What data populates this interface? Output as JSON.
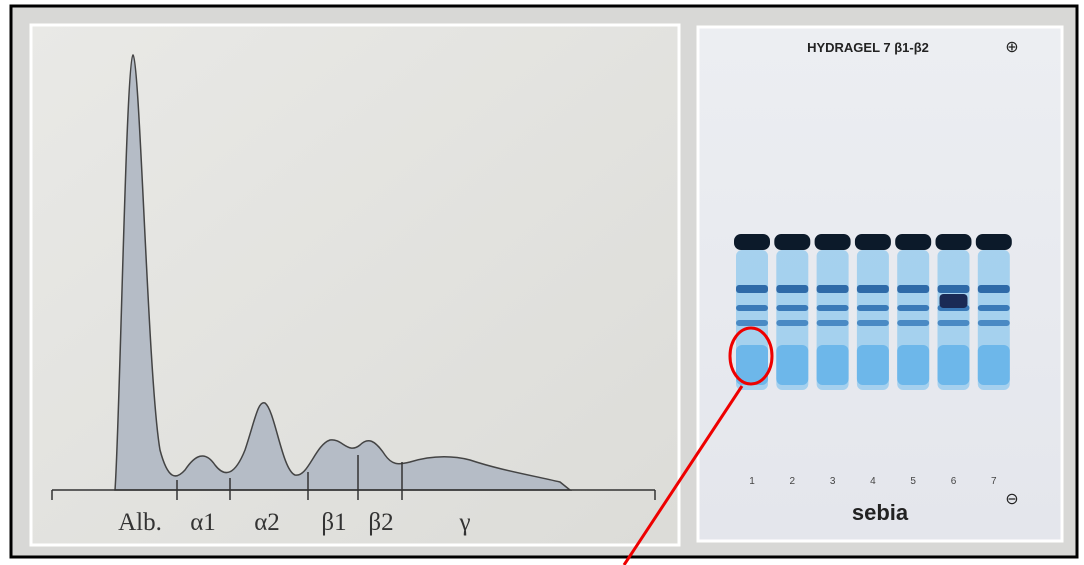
{
  "densitogram": {
    "fractions": [
      "Alb.",
      "α1",
      "α2",
      "β1",
      "β2",
      "γ"
    ]
  },
  "gel": {
    "title": "HYDRAGEL 7 β1-β2",
    "anode": "⊕",
    "cathode": "⊖",
    "brand": "sebia",
    "lanes": [
      "1",
      "2",
      "3",
      "4",
      "5",
      "6",
      "7"
    ]
  }
}
